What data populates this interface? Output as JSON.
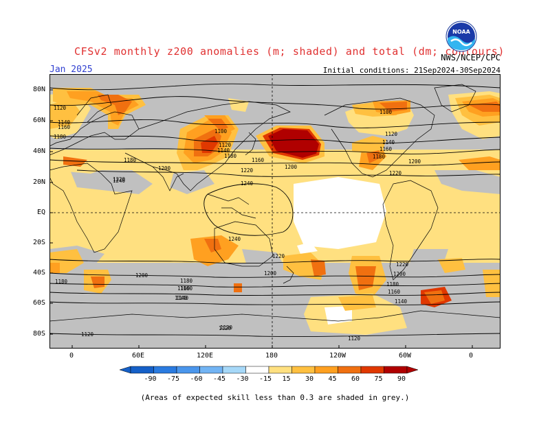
{
  "title": "CFSv2 monthly z200 anomalies (m; shaded) and total (dm; contours)",
  "valid_month": "Jan 2025",
  "initial_conditions": "Initial conditions: 21Sep2024-30Sep2024",
  "agency": "NWS/NCEP/CPC",
  "logo_text": "NOAA",
  "footer_note": "(Areas of expected skill less than 0.3 are shaded in grey.)",
  "lat_labels": [
    "80N",
    "60N",
    "40N",
    "20N",
    "EQ",
    "20S",
    "40S",
    "60S",
    "80S"
  ],
  "lon_labels": [
    "0",
    "60E",
    "120E",
    "180",
    "120W",
    "60W",
    "0"
  ],
  "colorbar": {
    "labels": [
      "-90",
      "-75",
      "-60",
      "-45",
      "-30",
      "-15",
      "15",
      "30",
      "45",
      "60",
      "75",
      "90"
    ],
    "colors": [
      "#1560c8",
      "#2a7be0",
      "#4a96ec",
      "#72b4f4",
      "#a6d8f8",
      "#ffffff",
      "#ffe080",
      "#ffc040",
      "#ffa020",
      "#f07010",
      "#e03800",
      "#b00000"
    ]
  },
  "contour_labels": [
    "1180",
    "1120",
    "1140",
    "1160",
    "1180",
    "1200",
    "1220",
    "1240",
    "1100",
    "1120",
    "1140",
    "1160",
    "1180",
    "1200",
    "1220",
    "1240",
    "1200",
    "1180",
    "1160",
    "1140",
    "1120",
    "1100",
    "1120",
    "1140",
    "1160",
    "1180",
    "1200",
    "1220",
    "1240",
    "1220",
    "1200",
    "1180",
    "1160",
    "1140",
    "1120",
    "1220",
    "1200",
    "1180",
    "1160",
    "1140",
    "1120",
    "1120"
  ],
  "colors": {
    "skill_grey": "#c0c0c0",
    "frame": "#000000"
  }
}
